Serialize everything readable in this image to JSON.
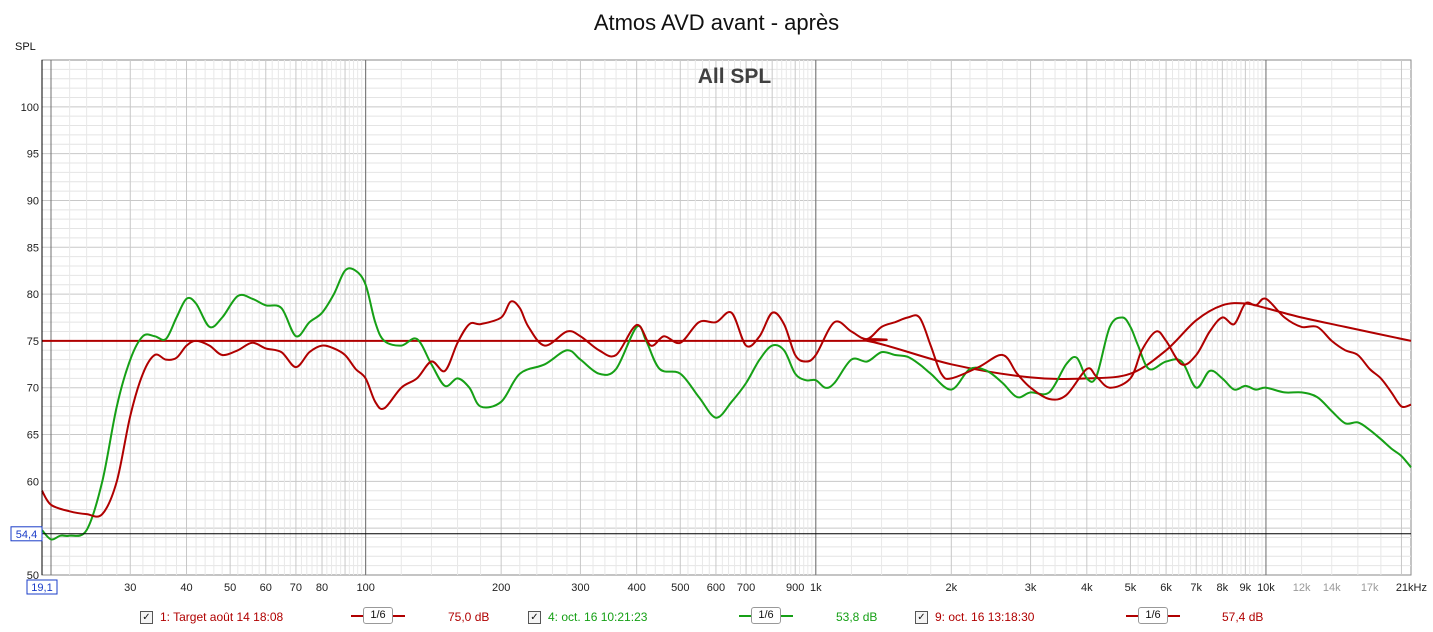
{
  "chart_data": {
    "type": "line",
    "title": "Atmos AVD avant - après",
    "subtitle": "All SPL",
    "ylabel": "SPL",
    "xscale": "log",
    "xlim": [
      19.1,
      21000
    ],
    "ylim": [
      50,
      105
    ],
    "yticks": [
      50,
      55,
      60,
      65,
      70,
      75,
      80,
      85,
      90,
      95,
      100
    ],
    "ytick_labels": [
      "50",
      "",
      "60",
      "65",
      "70",
      "75",
      "80",
      "85",
      "90",
      "95",
      "100"
    ],
    "xticks": [
      {
        "v": 30,
        "l": "30"
      },
      {
        "v": 40,
        "l": "40"
      },
      {
        "v": 50,
        "l": "50"
      },
      {
        "v": 60,
        "l": "60"
      },
      {
        "v": 70,
        "l": "70"
      },
      {
        "v": 80,
        "l": "80"
      },
      {
        "v": 100,
        "l": "100"
      },
      {
        "v": 200,
        "l": "200"
      },
      {
        "v": 300,
        "l": "300"
      },
      {
        "v": 400,
        "l": "400"
      },
      {
        "v": 500,
        "l": "500"
      },
      {
        "v": 600,
        "l": "600"
      },
      {
        "v": 700,
        "l": "700"
      },
      {
        "v": 900,
        "l": "900"
      },
      {
        "v": 1000,
        "l": "1k"
      },
      {
        "v": 2000,
        "l": "2k"
      },
      {
        "v": 3000,
        "l": "3k"
      },
      {
        "v": 4000,
        "l": "4k"
      },
      {
        "v": 5000,
        "l": "5k"
      },
      {
        "v": 6000,
        "l": "6k"
      },
      {
        "v": 7000,
        "l": "7k"
      },
      {
        "v": 8000,
        "l": "8k"
      },
      {
        "v": 9000,
        "l": "9k"
      },
      {
        "v": 10000,
        "l": "10k"
      },
      {
        "v": 12000,
        "l": "12k",
        "faded": true
      },
      {
        "v": 14000,
        "l": "14k",
        "faded": true
      },
      {
        "v": 17000,
        "l": "17k",
        "faded": true
      },
      {
        "v": 21000,
        "l": "21kHz"
      }
    ],
    "cursor": {
      "x": 19.1,
      "x_label": "19,1",
      "y": 54.4,
      "y_label": "54,4"
    },
    "grid": true,
    "legend": "bottom",
    "series": [
      {
        "name": "1: Target août 14 18:08",
        "color": "#b00000",
        "smoothing": "1/6",
        "level": "75,0 dB",
        "x": [
          19.1,
          1000,
          1300,
          2000,
          3000,
          4000,
          5000,
          6000,
          7000,
          8000,
          9000,
          10000,
          12000,
          15000,
          21000
        ],
        "y": [
          75,
          75,
          75,
          72.5,
          71.1,
          71,
          71.5,
          74,
          77.2,
          78.8,
          79,
          78.5,
          77.5,
          76.5,
          75
        ]
      },
      {
        "name": "4: oct. 16 10:21:23",
        "color": "#16a016",
        "smoothing": "1/6",
        "level": "53,8 dB",
        "x": [
          19.1,
          20,
          21,
          22,
          24,
          26,
          28,
          30,
          32,
          34,
          36,
          38,
          40,
          42,
          45,
          48,
          52,
          56,
          60,
          65,
          70,
          75,
          80,
          85,
          90,
          95,
          100,
          105,
          110,
          120,
          130,
          140,
          150,
          160,
          170,
          180,
          200,
          220,
          250,
          280,
          300,
          330,
          360,
          400,
          420,
          450,
          500,
          550,
          600,
          650,
          700,
          750,
          800,
          850,
          900,
          950,
          1000,
          1050,
          1100,
          1200,
          1300,
          1400,
          1500,
          1600,
          1700,
          1800,
          2000,
          2200,
          2400,
          2600,
          2800,
          3000,
          3300,
          3600,
          3800,
          4000,
          4200,
          4500,
          4800,
          5000,
          5200,
          5500,
          6000,
          6500,
          7000,
          7500,
          8000,
          8500,
          9000,
          9500,
          10000,
          11000,
          12000,
          13000,
          14000,
          15000,
          16000,
          17000,
          18000,
          19000,
          20000,
          21000
        ],
        "y": [
          54.8,
          53.8,
          54.2,
          54.2,
          54.8,
          60,
          68,
          73,
          75.5,
          75.5,
          75.2,
          77.5,
          79.5,
          79,
          76.5,
          77.5,
          79.8,
          79.5,
          78.8,
          78.5,
          75.5,
          77,
          78,
          80,
          82.5,
          82.5,
          81,
          77,
          75,
          74.5,
          75.2,
          72.5,
          70.2,
          71,
          70,
          68,
          68.5,
          71.5,
          72.5,
          74,
          73,
          71.5,
          72,
          76.5,
          75,
          72,
          71.5,
          69,
          66.8,
          68.5,
          70.5,
          73,
          74.5,
          74,
          71.5,
          70.8,
          70.8,
          70,
          70.5,
          73,
          72.8,
          73.8,
          73.5,
          73.3,
          72.5,
          71.5,
          69.8,
          72,
          71.8,
          70.5,
          69,
          69.5,
          69.5,
          72.5,
          73.2,
          71,
          71.2,
          76.5,
          77.5,
          76.5,
          74.5,
          72,
          72.8,
          72.8,
          70,
          71.8,
          71,
          69.8,
          70.2,
          69.8,
          70,
          69.5,
          69.5,
          69,
          67.5,
          66.2,
          66.3,
          65.5,
          64.5,
          63.5,
          62.7,
          61.5
        ]
      },
      {
        "name": "9: oct. 16 13:18:30",
        "color": "#b00000",
        "smoothing": "1/6",
        "level": "57,4 dB",
        "x": [
          19.1,
          20,
          22,
          24,
          26,
          28,
          30,
          32,
          34,
          36,
          38,
          40,
          42,
          45,
          48,
          52,
          56,
          60,
          65,
          70,
          75,
          80,
          85,
          90,
          95,
          100,
          105,
          110,
          120,
          130,
          140,
          150,
          160,
          170,
          180,
          200,
          210,
          220,
          230,
          250,
          280,
          300,
          330,
          360,
          400,
          430,
          460,
          500,
          550,
          600,
          650,
          700,
          750,
          800,
          850,
          900,
          950,
          1000,
          1100,
          1200,
          1300,
          1400,
          1500,
          1600,
          1700,
          1800,
          1900,
          2000,
          2300,
          2600,
          2800,
          3000,
          3300,
          3600,
          4000,
          4200,
          4500,
          5000,
          5300,
          5700,
          6000,
          6500,
          7000,
          7500,
          8000,
          8500,
          9000,
          9500,
          10000,
          11000,
          12000,
          13000,
          14000,
          15000,
          16000,
          17000,
          18000,
          19000,
          20000,
          21000
        ],
        "y": [
          59,
          57.5,
          56.8,
          56.5,
          56.5,
          60,
          67,
          71.5,
          73.5,
          73,
          73.2,
          74.5,
          75,
          74.5,
          73.5,
          74,
          74.8,
          74.2,
          73.8,
          72.2,
          73.8,
          74.5,
          74.2,
          73.5,
          72,
          71,
          68.5,
          67.8,
          70,
          71,
          72.8,
          71.8,
          74.8,
          76.8,
          76.8,
          77.5,
          79.2,
          78.5,
          76.5,
          74.5,
          76,
          75.5,
          74,
          73.5,
          76.7,
          74.5,
          75.5,
          74.8,
          77,
          77,
          78,
          74.5,
          75.5,
          78,
          76.8,
          73.5,
          72.8,
          73.5,
          77,
          76,
          75.2,
          76.5,
          77,
          77.5,
          77.5,
          74.5,
          71.5,
          71,
          72.2,
          73.5,
          71.5,
          70,
          68.8,
          69.2,
          72,
          71.2,
          70,
          71,
          74,
          76,
          75,
          72.5,
          73.5,
          76,
          77.5,
          76.8,
          79,
          78.8,
          79.5,
          77.5,
          76.5,
          76.5,
          75,
          74,
          73.5,
          72,
          71,
          69.5,
          68,
          68.2
        ]
      }
    ]
  }
}
